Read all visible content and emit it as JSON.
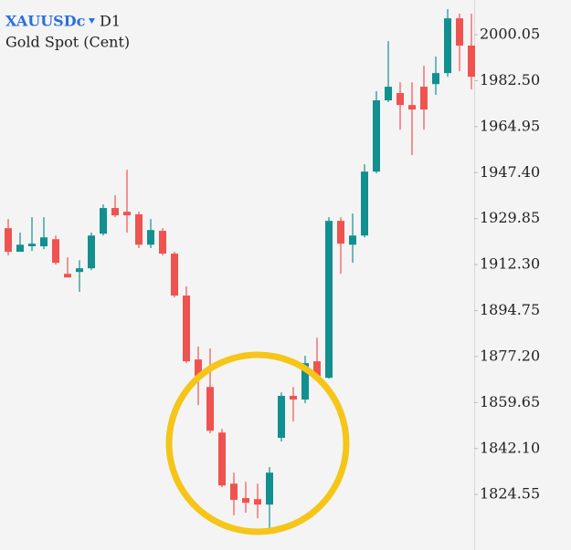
{
  "chart_data": {
    "type": "candlestick",
    "symbol": "XAUUSDc",
    "timeframe": "D1",
    "subtitle": "Gold Spot (Cent)",
    "up_color": "#11908f",
    "down_color": "#ef5350",
    "open": [
      1926.2,
      1917.2,
      1919.3,
      1919.3,
      1922.0,
      1908.8,
      1909.5,
      1910.9,
      1924.1,
      1933.9,
      1932.5,
      1931.5,
      1919.9,
      1925.2,
      1916.5,
      1900.5,
      1876.1,
      1865.6,
      1848.2,
      1828.7,
      1823.2,
      1822.8,
      1820.7,
      1846.2,
      1862.2,
      1860.8,
      1875.4,
      1869.1,
      1929.0,
      1919.9,
      1923.4,
      1947.8,
      1975.0,
      1977.8,
      1973.2,
      1980.2,
      1981.2,
      1985.4,
      2006.3,
      1995.9
    ],
    "high": [
      1929.7,
      1924.5,
      1930.4,
      1930.4,
      1923.4,
      1915.1,
      1914.0,
      1924.5,
      1935.3,
      1938.8,
      1948.5,
      1932.5,
      1929.7,
      1926.2,
      1917.2,
      1904.0,
      1881.0,
      1880.3,
      1849.6,
      1832.9,
      1829.4,
      1828.7,
      1835.0,
      1863.5,
      1865.6,
      1877.5,
      1884.4,
      1930.4,
      1930.4,
      1931.8,
      1950.6,
      1978.5,
      1997.6,
      1981.9,
      1981.9,
      1988.2,
      1991.7,
      2009.8,
      2008.1,
      2008.1
    ],
    "low": [
      1915.8,
      1917.2,
      1917.5,
      1918.2,
      1912.3,
      1907.4,
      1901.9,
      1910.2,
      1923.4,
      1930.4,
      1924.5,
      1918.6,
      1918.6,
      1915.8,
      1899.8,
      1874.7,
      1858.7,
      1847.9,
      1827.3,
      1816.6,
      1817.6,
      1815.5,
      1811.3,
      1844.8,
      1852.4,
      1859.4,
      1869.1,
      1868.8,
      1908.8,
      1913.0,
      1922.7,
      1947.1,
      1974.3,
      1963.8,
      1954.1,
      1963.8,
      1977.1,
      1984.0,
      1986.1,
      1979.2
    ],
    "close": [
      1917.2,
      1919.9,
      1920.3,
      1922.7,
      1913.0,
      1907.4,
      1910.9,
      1923.4,
      1933.9,
      1931.1,
      1931.1,
      1919.9,
      1925.5,
      1916.5,
      1900.5,
      1875.4,
      1869.8,
      1848.9,
      1828.0,
      1822.5,
      1821.4,
      1820.7,
      1832.9,
      1862.2,
      1860.8,
      1874.7,
      1869.8,
      1929.0,
      1920.3,
      1923.4,
      1947.8,
      1975.0,
      1980.2,
      1973.2,
      1971.5,
      1971.5,
      1985.4,
      2006.3,
      1995.9,
      1984.0
    ],
    "ylim": [
      1807.9,
      2013.3
    ],
    "yticks": [
      2000.05,
      {
        "value": 1982.5,
        "label": "1982.50"
      },
      1964.95,
      {
        "value": 1947.4,
        "label": "1947.40"
      },
      1929.85,
      {
        "value": 1912.3,
        "label": "1912.30"
      },
      1894.75,
      {
        "value": 1877.2,
        "label": "1877.20"
      },
      1859.65,
      {
        "value": 1842.1,
        "label": "1842.10"
      },
      1824.55
    ]
  }
}
